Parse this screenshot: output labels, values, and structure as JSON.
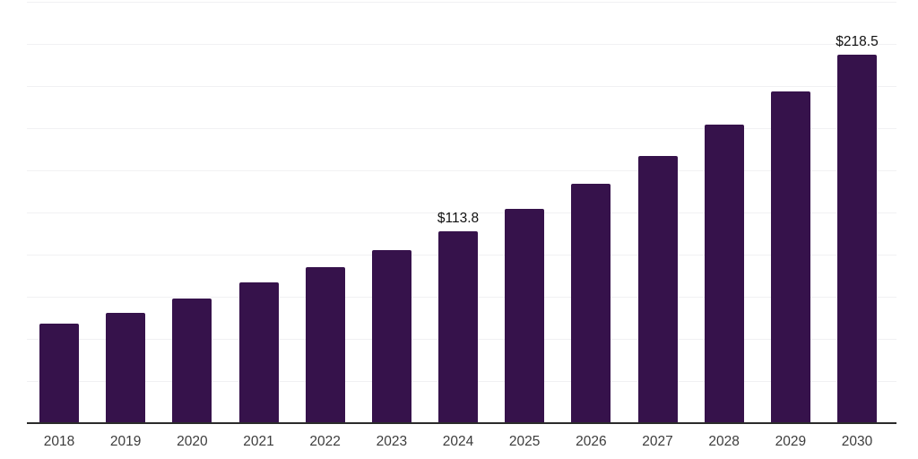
{
  "chart_data": {
    "type": "bar",
    "title": "",
    "xlabel": "",
    "ylabel": "",
    "categories": [
      "2018",
      "2019",
      "2020",
      "2021",
      "2022",
      "2023",
      "2024",
      "2025",
      "2026",
      "2027",
      "2028",
      "2029",
      "2030"
    ],
    "values": [
      59.0,
      65.5,
      74.0,
      83.5,
      92.5,
      102.5,
      113.8,
      127.0,
      142.0,
      158.5,
      177.0,
      197.0,
      218.5
    ],
    "data_labels": [
      {
        "index": 6,
        "text": "$113.8"
      },
      {
        "index": 12,
        "text": "$218.5"
      }
    ],
    "value_prefix": "$",
    "ylim": [
      0,
      250
    ],
    "ytick_step": 25,
    "y_tick_labels_visible": false,
    "grid": true,
    "legend": false,
    "colors": {
      "bar": "#36124B",
      "grid": "#f1f1f3",
      "axis": "#2b2b2b",
      "tick_label": "#3d3d3d",
      "value_label": "#111111",
      "background": "#ffffff"
    }
  }
}
